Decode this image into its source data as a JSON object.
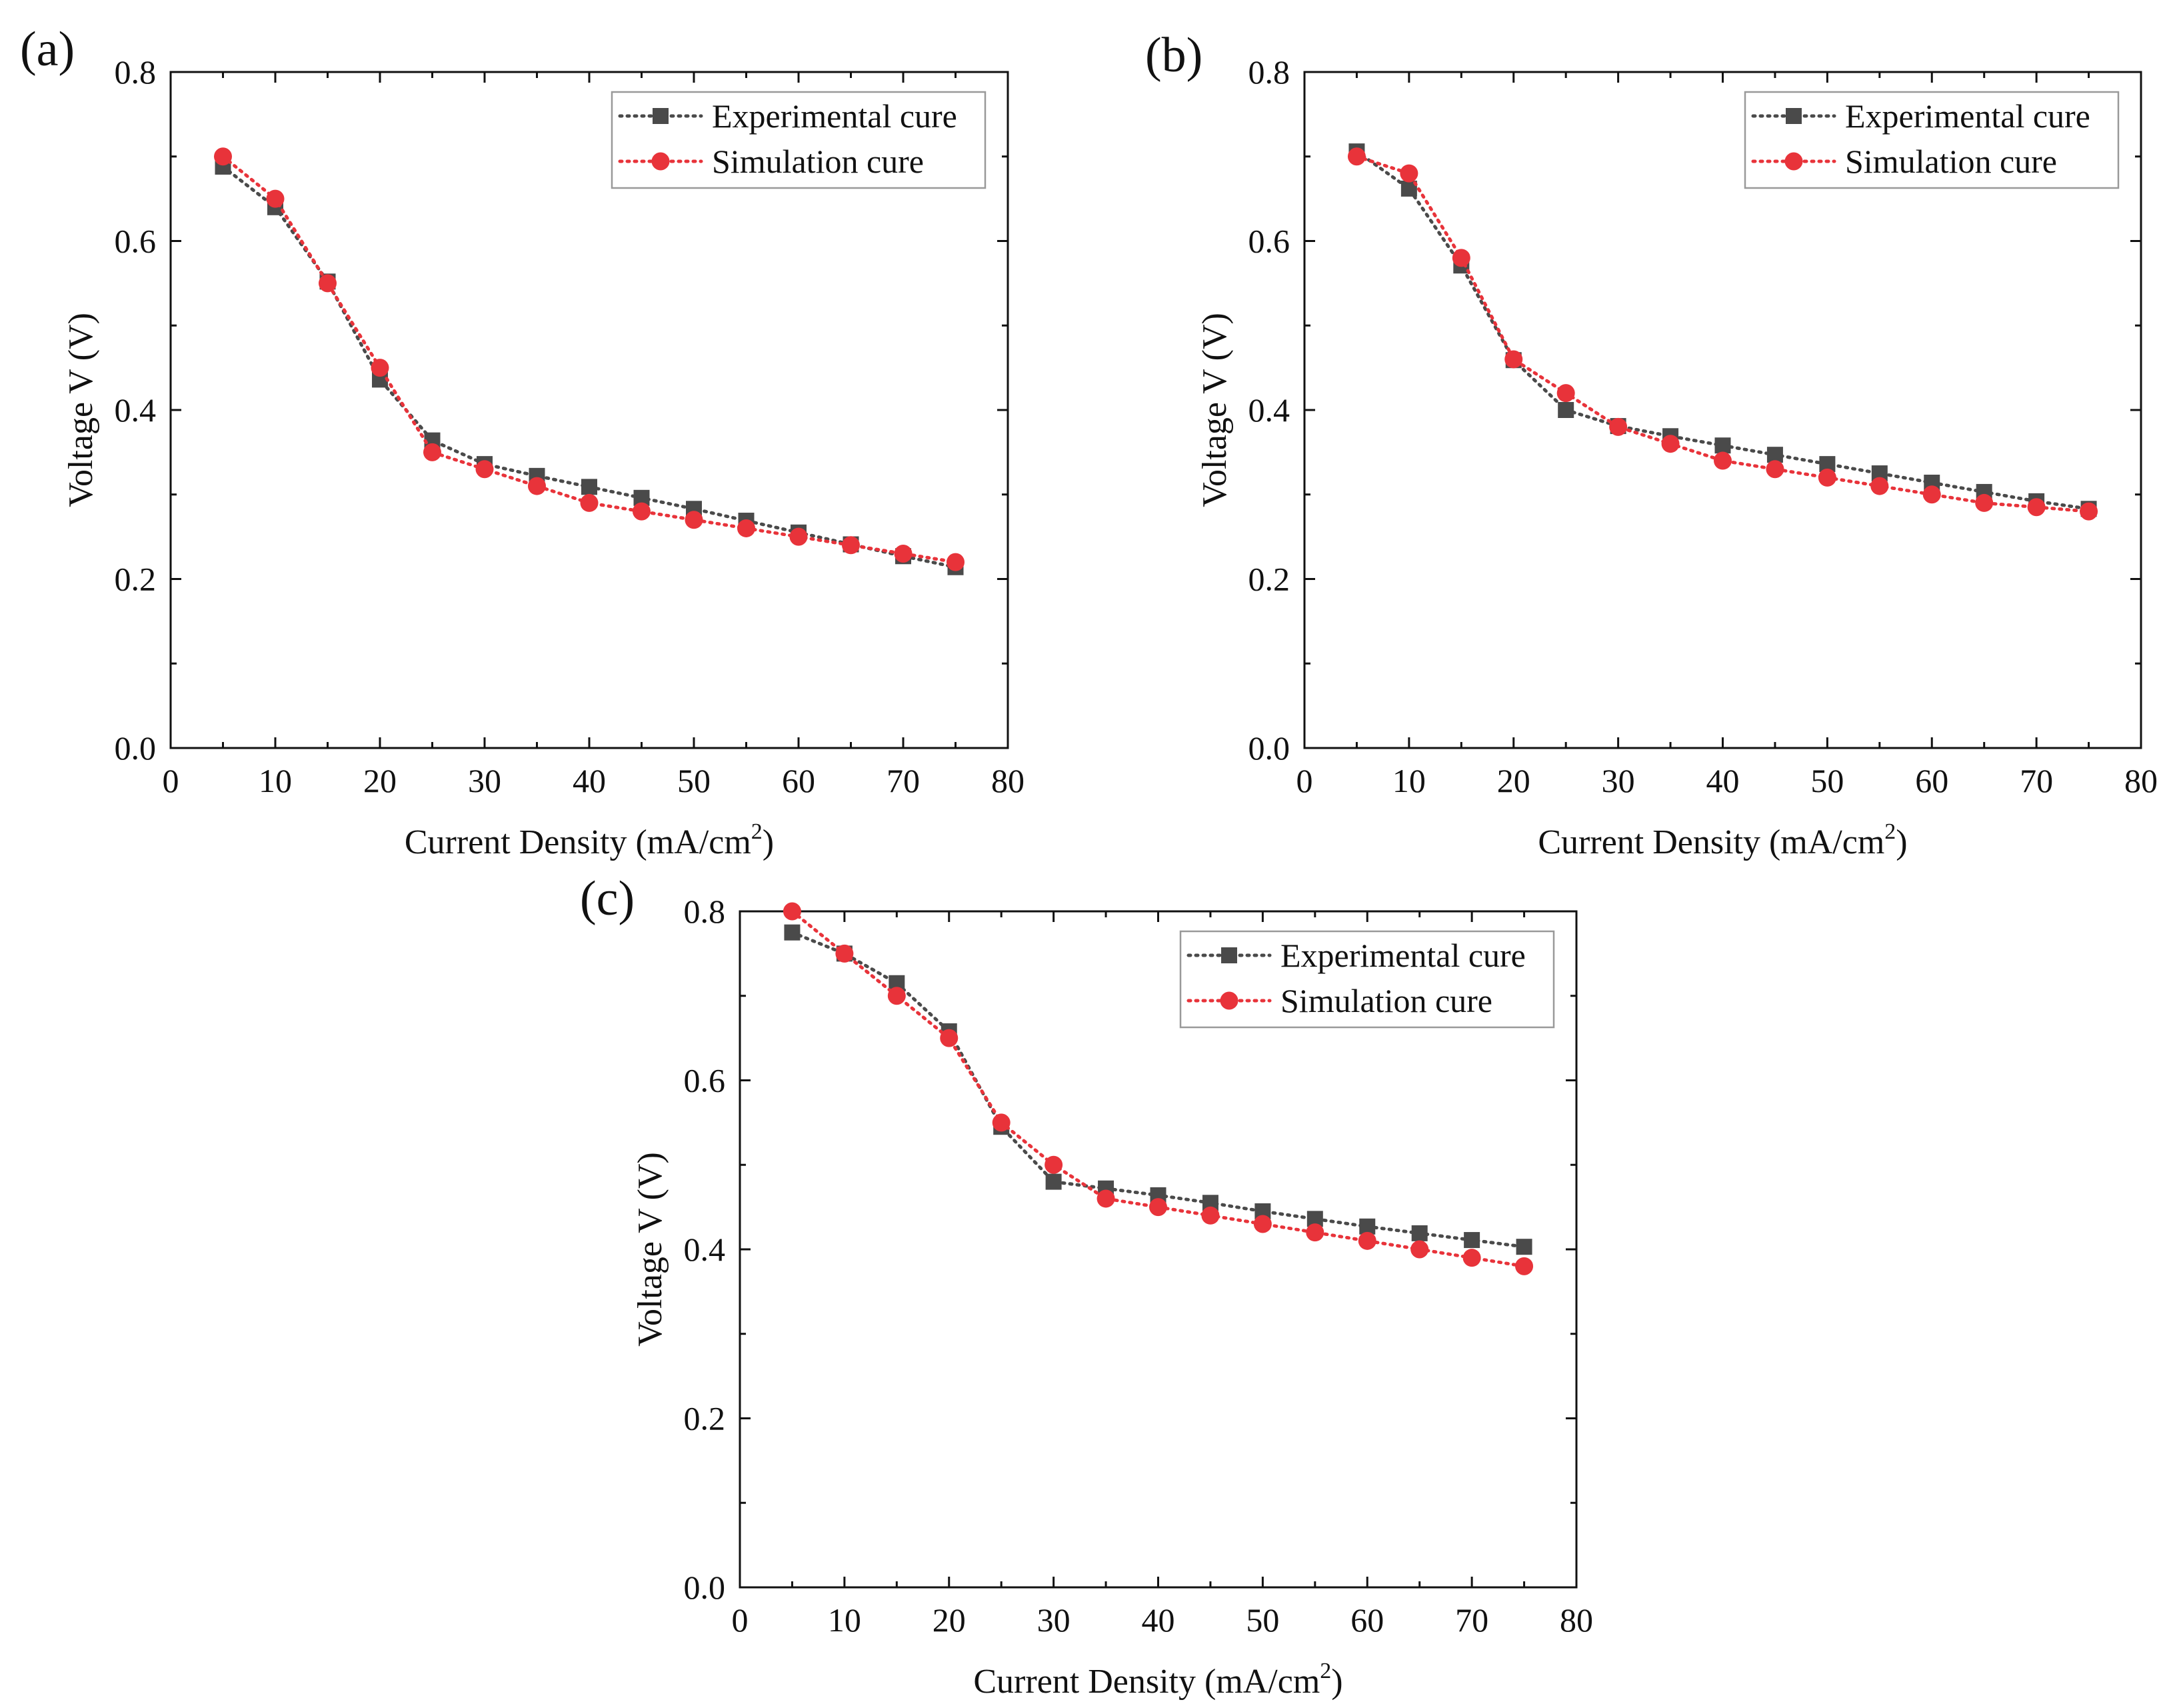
{
  "chart_data": [
    {
      "type": "line",
      "panel_label": "(a)",
      "xlabel": "Current Density (mA/cm",
      "xlabel_sup": "2",
      "xlabel_close": ")",
      "ylabel": "Voltage V (V)",
      "xlim": [
        0,
        80
      ],
      "ylim": [
        0,
        0.8
      ],
      "xticks": [
        "0",
        "10",
        "20",
        "30",
        "40",
        "50",
        "60",
        "70",
        "80"
      ],
      "yticks": [
        "0.0",
        "0.2",
        "0.4",
        "0.6",
        "0.8"
      ],
      "legend_position": "top-right",
      "x": [
        5,
        10,
        15,
        20,
        25,
        30,
        35,
        40,
        45,
        50,
        55,
        60,
        65,
        70,
        75
      ],
      "series": [
        {
          "name": "Experimental cure",
          "marker": "square",
          "color": "#4a4a4a",
          "values": [
            0.688,
            0.64,
            0.552,
            0.436,
            0.364,
            0.336,
            0.322,
            0.309,
            0.296,
            0.283,
            0.269,
            0.255,
            0.241,
            0.227,
            0.214
          ]
        },
        {
          "name": "Simulation cure",
          "marker": "circle",
          "color": "#e8333a",
          "values": [
            0.7,
            0.65,
            0.55,
            0.45,
            0.35,
            0.33,
            0.31,
            0.29,
            0.28,
            0.27,
            0.26,
            0.25,
            0.24,
            0.23,
            0.22
          ]
        }
      ]
    },
    {
      "type": "line",
      "panel_label": "(b)",
      "xlabel": "Current Density (mA/cm",
      "xlabel_sup": "2",
      "xlabel_close": ")",
      "ylabel": "Voltage V (V)",
      "xlim": [
        0,
        80
      ],
      "ylim": [
        0,
        0.8
      ],
      "xticks": [
        "0",
        "10",
        "20",
        "30",
        "40",
        "50",
        "60",
        "70",
        "80"
      ],
      "yticks": [
        "0.0",
        "0.2",
        "0.4",
        "0.6",
        "0.8"
      ],
      "legend_position": "top-right",
      "x": [
        5,
        10,
        15,
        20,
        25,
        30,
        35,
        40,
        45,
        50,
        55,
        60,
        65,
        70,
        75
      ],
      "series": [
        {
          "name": "Experimental cure",
          "marker": "square",
          "color": "#4a4a4a",
          "values": [
            0.706,
            0.662,
            0.571,
            0.459,
            0.4,
            0.381,
            0.369,
            0.358,
            0.347,
            0.336,
            0.325,
            0.314,
            0.303,
            0.292,
            0.283
          ]
        },
        {
          "name": "Simulation cure",
          "marker": "circle",
          "color": "#e8333a",
          "values": [
            0.7,
            0.68,
            0.58,
            0.46,
            0.42,
            0.38,
            0.36,
            0.34,
            0.33,
            0.32,
            0.31,
            0.3,
            0.29,
            0.285,
            0.28
          ]
        }
      ]
    },
    {
      "type": "line",
      "panel_label": "(c)",
      "xlabel": "Current Density (mA/cm",
      "xlabel_sup": "2",
      "xlabel_close": ")",
      "ylabel": "Voltage V (V)",
      "xlim": [
        0,
        80
      ],
      "ylim": [
        0,
        0.8
      ],
      "xticks": [
        "0",
        "10",
        "20",
        "30",
        "40",
        "50",
        "60",
        "70",
        "80"
      ],
      "yticks": [
        "0.0",
        "0.2",
        "0.4",
        "0.6",
        "0.8"
      ],
      "legend_position": "top-right",
      "x": [
        5,
        10,
        15,
        20,
        25,
        30,
        35,
        40,
        45,
        50,
        55,
        60,
        65,
        70,
        75
      ],
      "series": [
        {
          "name": "Experimental cure",
          "marker": "square",
          "color": "#4a4a4a",
          "values": [
            0.775,
            0.75,
            0.715,
            0.658,
            0.545,
            0.48,
            0.472,
            0.464,
            0.455,
            0.445,
            0.436,
            0.427,
            0.419,
            0.411,
            0.403
          ]
        },
        {
          "name": "Simulation cure",
          "marker": "circle",
          "color": "#e8333a",
          "values": [
            0.8,
            0.75,
            0.7,
            0.65,
            0.55,
            0.5,
            0.46,
            0.45,
            0.44,
            0.43,
            0.42,
            0.41,
            0.4,
            0.39,
            0.38
          ]
        }
      ]
    }
  ]
}
